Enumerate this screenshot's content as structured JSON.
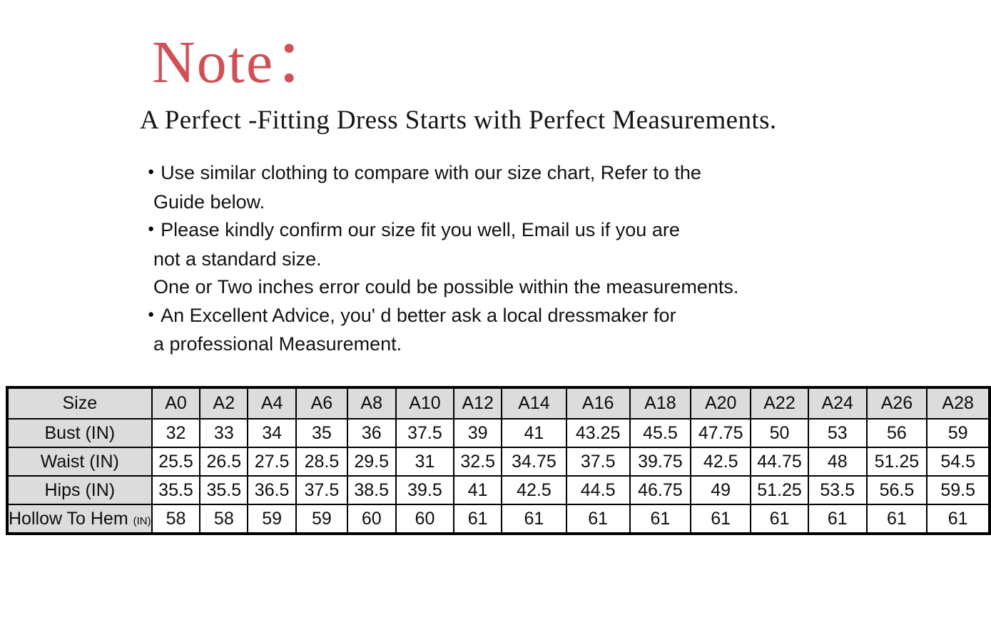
{
  "colors": {
    "accent_red": "#d14f55",
    "table_header_bg": "#dcdcdc",
    "border_black": "#000000",
    "text_black": "#111111"
  },
  "note": {
    "title": "Note：",
    "subtitle": "A Perfect -Fitting Dress Starts with Perfect Measurements.",
    "lines": [
      {
        "bullet": true,
        "text": "Use similar clothing to compare with our size chart, Refer to the"
      },
      {
        "bullet": false,
        "text": "Guide below."
      },
      {
        "bullet": true,
        "text": "Please kindly confirm our size fit you well, Email us if you are"
      },
      {
        "bullet": false,
        "text": "not a standard size."
      },
      {
        "bullet": false,
        "text": "One or Two inches error could be possible within the measurements."
      },
      {
        "bullet": true,
        "text": "An Excellent Advice, you' d better ask a local dressmaker for"
      },
      {
        "bullet": false,
        "text": "a professional Measurement."
      }
    ]
  },
  "size_chart": {
    "corner_label": "Size",
    "sizes": [
      "A0",
      "A2",
      "A4",
      "A6",
      "A8",
      "A10",
      "A12",
      "A14",
      "A16",
      "A18",
      "A20",
      "A22",
      "A24",
      "A26",
      "A28"
    ],
    "rows": [
      {
        "label": "Bust (IN)",
        "values": [
          "32",
          "33",
          "34",
          "35",
          "36",
          "37.5",
          "39",
          "41",
          "43.25",
          "45.5",
          "47.75",
          "50",
          "53",
          "56",
          "59"
        ]
      },
      {
        "label": "Waist (IN)",
        "values": [
          "25.5",
          "26.5",
          "27.5",
          "28.5",
          "29.5",
          "31",
          "32.5",
          "34.75",
          "37.5",
          "39.75",
          "42.5",
          "44.75",
          "48",
          "51.25",
          "54.5"
        ]
      },
      {
        "label": "Hips (IN)",
        "values": [
          "35.5",
          "35.5",
          "36.5",
          "37.5",
          "38.5",
          "39.5",
          "41",
          "42.5",
          "44.5",
          "46.75",
          "49",
          "51.25",
          "53.5",
          "56.5",
          "59.5"
        ]
      },
      {
        "label": "Hollow To Hem",
        "label_suffix": "(IN)",
        "values": [
          "58",
          "58",
          "59",
          "59",
          "60",
          "60",
          "61",
          "61",
          "61",
          "61",
          "61",
          "61",
          "61",
          "61",
          "61"
        ]
      }
    ]
  },
  "chart_data": {
    "type": "table",
    "columns": [
      "Size",
      "A0",
      "A2",
      "A4",
      "A6",
      "A8",
      "A10",
      "A12",
      "A14",
      "A16",
      "A18",
      "A20",
      "A22",
      "A24",
      "A26",
      "A28"
    ],
    "rows": [
      [
        "Bust (IN)",
        "32",
        "33",
        "34",
        "35",
        "36",
        "37.5",
        "39",
        "41",
        "43.25",
        "45.5",
        "47.75",
        "50",
        "53",
        "56",
        "59"
      ],
      [
        "Waist (IN)",
        "25.5",
        "26.5",
        "27.5",
        "28.5",
        "29.5",
        "31",
        "32.5",
        "34.75",
        "37.5",
        "39.75",
        "42.5",
        "44.75",
        "48",
        "51.25",
        "54.5"
      ],
      [
        "Hips (IN)",
        "35.5",
        "35.5",
        "36.5",
        "37.5",
        "38.5",
        "39.5",
        "41",
        "42.5",
        "44.5",
        "46.75",
        "49",
        "51.25",
        "53.5",
        "56.5",
        "59.5"
      ],
      [
        "Hollow To Hem (IN)",
        "58",
        "58",
        "59",
        "59",
        "60",
        "60",
        "61",
        "61",
        "61",
        "61",
        "61",
        "61",
        "61",
        "61",
        "61"
      ]
    ]
  }
}
